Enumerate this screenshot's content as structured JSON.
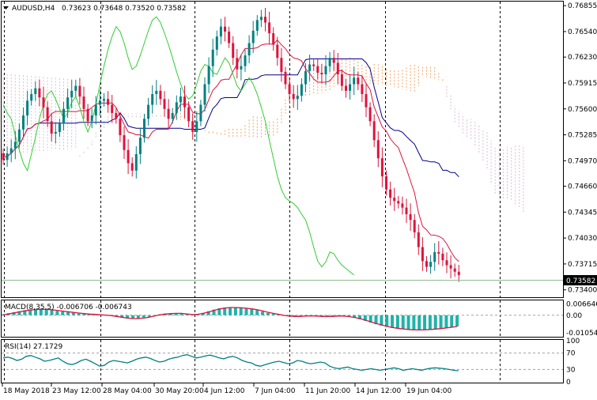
{
  "header": {
    "symbol_tf": "AUDUSD,H4",
    "ohlc": "0.73623 0.73648 0.73520 0.73582"
  },
  "macd_label": "MACD(8,35,5) -0.006706 -0.006743",
  "rsi_label": "RSI(14) 27.1729",
  "current_price": "0.73582",
  "colors": {
    "bull": "#008080",
    "bear": "#dc143c",
    "tenkan": "#dc143c",
    "kijun": "#00008b",
    "chikou": "#32cd32",
    "cloud_up": "#f4a460",
    "cloud_down": "#d8bfd8",
    "macd_hist": "#20b2aa",
    "macd_signal": "#dc143c",
    "rsi_line": "#008080",
    "grid": "#000000",
    "level": "#a0a0a0"
  },
  "chart_data": [
    {
      "type": "candlestick",
      "title": "AUDUSD,H4",
      "y_ticks": [
        "0.76855",
        "0.76540",
        "0.76230",
        "0.75915",
        "0.75600",
        "0.75285",
        "0.74970",
        "0.74660",
        "0.74345",
        "0.74030",
        "0.73715",
        "0.73400"
      ],
      "x_labels": [
        "18 May 2018",
        "23 May 12:00",
        "28 May 04:00",
        "30 May 20:00",
        "4 Jun 12:00",
        "7 Jun 04:00",
        "11 Jun 20:00",
        "14 Jun 12:00",
        "19 Jun 04:00"
      ],
      "ylim": [
        0.7332,
        0.76895
      ],
      "close": [
        0.7498,
        0.7506,
        0.7512,
        0.752,
        0.7535,
        0.7552,
        0.757,
        0.7578,
        0.7585,
        0.7574,
        0.7562,
        0.7545,
        0.753,
        0.7532,
        0.7542,
        0.756,
        0.7574,
        0.7582,
        0.7588,
        0.7575,
        0.756,
        0.7545,
        0.7552,
        0.7565,
        0.757,
        0.7572,
        0.7565,
        0.7555,
        0.7548,
        0.7528,
        0.751,
        0.7494,
        0.7485,
        0.7505,
        0.7525,
        0.7548,
        0.7565,
        0.7578,
        0.7582,
        0.7572,
        0.756,
        0.7548,
        0.7555,
        0.7568,
        0.7575,
        0.7562,
        0.7545,
        0.7532,
        0.7545,
        0.7565,
        0.759,
        0.7612,
        0.7632,
        0.7648,
        0.766,
        0.7654,
        0.764,
        0.7622,
        0.7608,
        0.7612,
        0.7625,
        0.764,
        0.7655,
        0.7668,
        0.7672,
        0.7665,
        0.7652,
        0.7638,
        0.7622,
        0.7605,
        0.759,
        0.7578,
        0.7572,
        0.7576,
        0.759,
        0.7606,
        0.7614,
        0.7612,
        0.7604,
        0.7602,
        0.7612,
        0.7622,
        0.7616,
        0.7602,
        0.7588,
        0.7582,
        0.759,
        0.7598,
        0.759,
        0.7578,
        0.7562,
        0.7545,
        0.7522,
        0.75,
        0.7478,
        0.7462,
        0.7452,
        0.7448,
        0.7445,
        0.744,
        0.7432,
        0.7425,
        0.741,
        0.7392,
        0.7375,
        0.7368,
        0.7374,
        0.7386,
        0.7384,
        0.7376,
        0.737,
        0.7366,
        0.7362,
        0.7358
      ],
      "ichimoku": [
        "Tenkan-sen",
        "Kijun-sen",
        "Chikou Span",
        "Senkou Span A",
        "Senkou Span B"
      ]
    },
    {
      "type": "bar",
      "title": "MACD(8,35,5)",
      "y_ticks": [
        "0.006646",
        "0.00",
        "-0.010542"
      ],
      "ylim": [
        -0.0124,
        0.0084
      ],
      "values": [
        0.0006,
        0.0012,
        0.0018,
        0.0024,
        0.003,
        0.0034,
        0.0036,
        0.0036,
        0.0034,
        0.003,
        0.0026,
        0.0022,
        0.0018,
        0.0014,
        0.001,
        0.0008,
        0.0006,
        0.0004,
        0.0002,
        0.0,
        -0.0004,
        -0.001,
        -0.0016,
        -0.002,
        -0.0022,
        -0.002,
        -0.0014,
        -0.0008,
        0.0,
        0.0006,
        0.001,
        0.0012,
        0.0012,
        0.001,
        0.0006,
        0.0002,
        0.0006,
        0.0014,
        0.0024,
        0.0034,
        0.0042,
        0.0046,
        0.0048,
        0.0046,
        0.0044,
        0.004,
        0.0036,
        0.003,
        0.0022,
        0.0014,
        0.0008,
        0.0002,
        -0.0004,
        -0.0008,
        -0.0008,
        -0.0006,
        -0.0004,
        -0.0004,
        -0.0006,
        -0.0008,
        -0.0008,
        -0.0006,
        -0.0004,
        -0.0006,
        -0.001,
        -0.0016,
        -0.0024,
        -0.0034,
        -0.0044,
        -0.0054,
        -0.0062,
        -0.007,
        -0.0076,
        -0.008,
        -0.0084,
        -0.0086,
        -0.0088,
        -0.0088,
        -0.0086,
        -0.0084,
        -0.0082,
        -0.0078,
        -0.0074,
        -0.007,
        -0.0067
      ],
      "signal": [
        0.0003,
        0.0008,
        0.0014,
        0.002,
        0.0026,
        0.0031,
        0.0034,
        0.0035,
        0.0035,
        0.0033,
        0.0029,
        0.0025,
        0.0021,
        0.0017,
        0.0013,
        0.001,
        0.0007,
        0.0005,
        0.0003,
        0.0001,
        -0.0002,
        -0.0007,
        -0.0012,
        -0.0017,
        -0.002,
        -0.002,
        -0.0017,
        -0.0012,
        -0.0005,
        0.0002,
        0.0007,
        0.001,
        0.0011,
        0.0011,
        0.0008,
        0.0004,
        0.0005,
        0.0011,
        0.0019,
        0.0028,
        0.0037,
        0.0043,
        0.0046,
        0.0046,
        0.0045,
        0.0042,
        0.0038,
        0.0033,
        0.0026,
        0.0018,
        0.0011,
        0.0005,
        -0.0001,
        -0.0005,
        -0.0007,
        -0.0007,
        -0.0005,
        -0.0004,
        -0.0005,
        -0.0007,
        -0.0008,
        -0.0007,
        -0.0005,
        -0.0005,
        -0.0008,
        -0.0013,
        -0.002,
        -0.0029,
        -0.0039,
        -0.0049,
        -0.0058,
        -0.0066,
        -0.0073,
        -0.0078,
        -0.0082,
        -0.0085,
        -0.0087,
        -0.0088,
        -0.0087,
        -0.0085,
        -0.0083,
        -0.008,
        -0.0076,
        -0.0072,
        -0.0067
      ]
    },
    {
      "type": "line",
      "title": "RSI(14)",
      "y_ticks": [
        "100",
        "70",
        "30",
        "0"
      ],
      "ylim": [
        0,
        100
      ],
      "levels": [
        70,
        30
      ],
      "values": [
        58,
        60,
        57,
        52,
        55,
        62,
        64,
        60,
        56,
        50,
        52,
        55,
        58,
        50,
        44,
        42,
        46,
        52,
        55,
        50,
        44,
        38,
        40,
        48,
        52,
        50,
        48,
        46,
        50,
        55,
        58,
        60,
        57,
        52,
        48,
        50,
        55,
        58,
        60,
        64,
        66,
        62,
        58,
        60,
        63,
        65,
        62,
        58,
        56,
        60,
        62,
        58,
        52,
        48,
        46,
        40,
        38,
        42,
        45,
        48,
        50,
        47,
        44,
        46,
        52,
        50,
        46,
        44,
        46,
        48,
        46,
        38,
        34,
        32,
        34,
        36,
        32,
        30,
        28,
        30,
        32,
        30,
        28,
        30,
        32,
        34,
        32,
        28,
        30,
        32,
        30,
        28,
        31,
        33,
        34,
        33,
        32,
        30,
        28,
        27
      ]
    }
  ]
}
